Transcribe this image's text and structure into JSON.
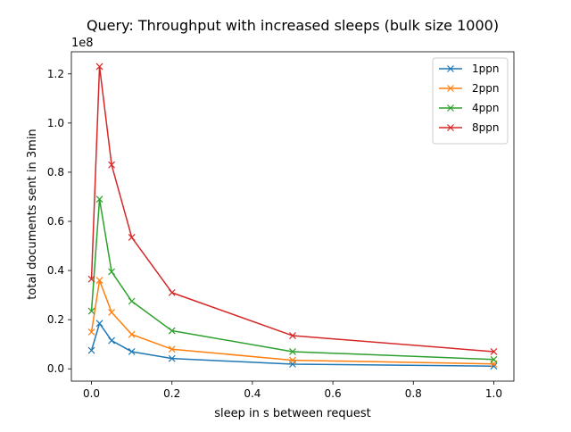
{
  "chart_data": {
    "type": "line",
    "title": "Query: Throughput with increased sleeps (bulk size 1000)",
    "xlabel": "sleep in s between request",
    "ylabel": "total documents sent in 3min",
    "y_offset_label": "1e8",
    "xlim": [
      -0.05,
      1.05
    ],
    "ylim": [
      -0.05,
      1.29
    ],
    "x_ticks": [
      0.0,
      0.2,
      0.4,
      0.6,
      0.8,
      1.0
    ],
    "x_tick_labels": [
      "0.0",
      "0.2",
      "0.4",
      "0.6",
      "0.8",
      "1.0"
    ],
    "y_ticks": [
      0.0,
      0.2,
      0.4,
      0.6,
      0.8,
      1.0,
      1.2
    ],
    "y_tick_labels": [
      "0.0",
      "0.2",
      "0.4",
      "0.6",
      "0.8",
      "1.0",
      "1.2"
    ],
    "legend_position": "top-right",
    "marker": "x",
    "grid": false,
    "x": [
      0.0,
      0.02,
      0.05,
      0.1,
      0.2,
      0.5,
      1.0
    ],
    "series": [
      {
        "name": "1ppn",
        "color": "#1f77b4",
        "values": [
          0.075,
          0.185,
          0.115,
          0.07,
          0.042,
          0.019,
          0.011
        ]
      },
      {
        "name": "2ppn",
        "color": "#ff7f0e",
        "values": [
          0.15,
          0.36,
          0.23,
          0.14,
          0.08,
          0.035,
          0.02
        ]
      },
      {
        "name": "4ppn",
        "color": "#2ca02c",
        "values": [
          0.235,
          0.69,
          0.395,
          0.275,
          0.155,
          0.07,
          0.038
        ]
      },
      {
        "name": "8ppn",
        "color": "#d62728",
        "values": [
          0.365,
          1.23,
          0.83,
          0.535,
          0.31,
          0.135,
          0.07
        ]
      }
    ]
  }
}
